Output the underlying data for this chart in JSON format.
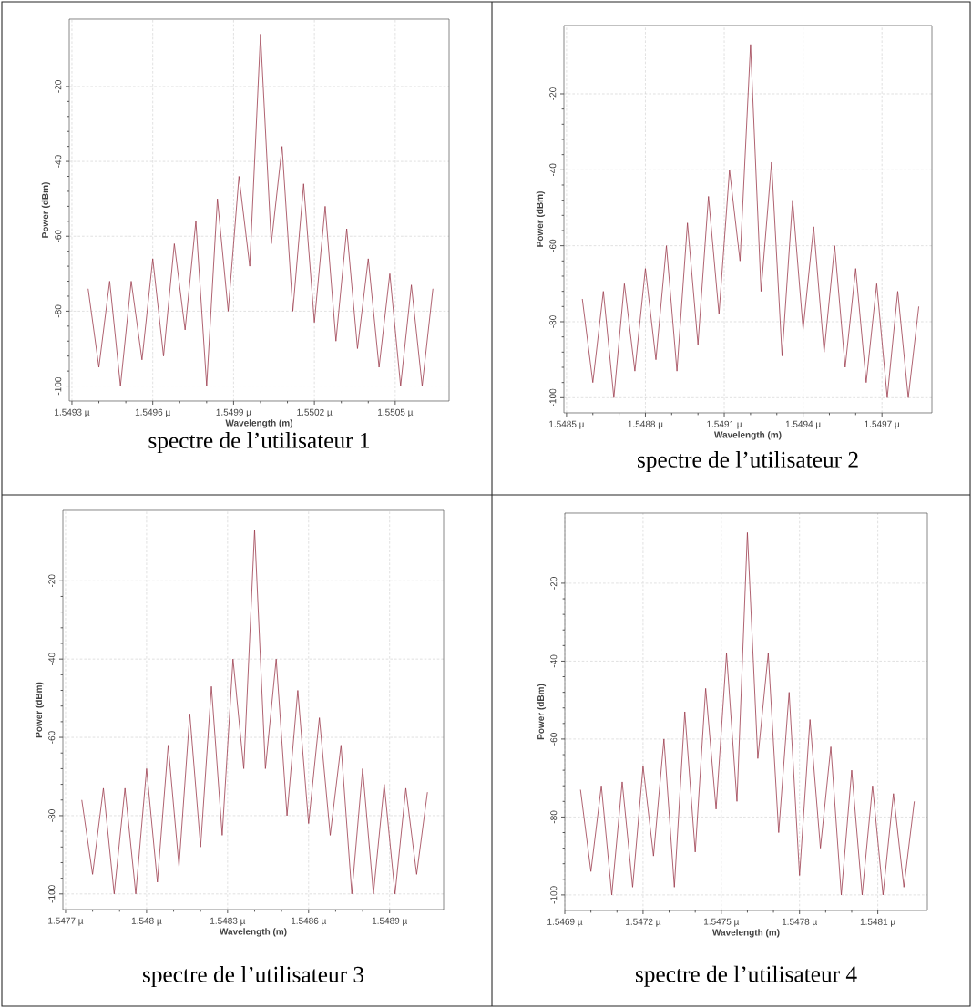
{
  "chart_data": [
    {
      "type": "line",
      "title": "spectre de l’utilisateur 1",
      "xlabel": "Wavelength (m)",
      "ylabel": "Power (dBm)",
      "xlim": [
        1.54929,
        1.5507
      ],
      "ylim": [
        -104,
        -2
      ],
      "xticks": [
        {
          "value": 1.5493,
          "label": "1.5493 µ"
        },
        {
          "value": 1.5496,
          "label": "1.5496 µ"
        },
        {
          "value": 1.5499,
          "label": "1.5499 µ"
        },
        {
          "value": 1.5502,
          "label": "1.5502 µ"
        },
        {
          "value": 1.5505,
          "label": "1.5505 µ"
        }
      ],
      "yticks": [
        -20,
        -40,
        -60,
        -80,
        -100
      ],
      "grid": true,
      "x": [
        1.54936,
        1.5494,
        1.54944,
        1.54948,
        1.54952,
        1.54956,
        1.5496,
        1.54964,
        1.54968,
        1.54972,
        1.54976,
        1.5498,
        1.54984,
        1.54988,
        1.54992,
        1.54996,
        1.55,
        1.55004,
        1.55008,
        1.55012,
        1.55016,
        1.5502,
        1.55024,
        1.55028,
        1.55032,
        1.55036,
        1.5504,
        1.55044,
        1.55048,
        1.55052,
        1.55056,
        1.5506,
        1.55064
      ],
      "series": [
        {
          "color": "#9c3b4c",
          "values": [
            -74,
            -95,
            -72,
            -100,
            -72,
            -93,
            -66,
            -92,
            -62,
            -85,
            -56,
            -100,
            -50,
            -80,
            -44,
            -68,
            -6,
            -62,
            -36,
            -80,
            -46,
            -83,
            -52,
            -88,
            -58,
            -90,
            -66,
            -95,
            -70,
            -100,
            -73,
            -100,
            -74
          ]
        }
      ]
    },
    {
      "type": "line",
      "title": "spectre de l’utilisateur 2",
      "xlabel": "Wavelength (m)",
      "ylabel": "Power (dBm)",
      "xlim": [
        1.54849,
        1.54989
      ],
      "ylim": [
        -104,
        -2
      ],
      "xticks": [
        {
          "value": 1.5485,
          "label": "1.5485 µ"
        },
        {
          "value": 1.5488,
          "label": "1.5488 µ"
        },
        {
          "value": 1.5491,
          "label": "1.5491 µ"
        },
        {
          "value": 1.5494,
          "label": "1.5494 µ"
        },
        {
          "value": 1.5497,
          "label": "1.5497 µ"
        }
      ],
      "yticks": [
        -20,
        -40,
        -60,
        -80,
        -100
      ],
      "grid": true,
      "x": [
        1.54856,
        1.5486,
        1.54864,
        1.54868,
        1.54872,
        1.54876,
        1.5488,
        1.54884,
        1.54888,
        1.54892,
        1.54896,
        1.549,
        1.54904,
        1.54908,
        1.54912,
        1.54916,
        1.5492,
        1.54924,
        1.54928,
        1.54932,
        1.54936,
        1.5494,
        1.54944,
        1.54948,
        1.54952,
        1.54956,
        1.5496,
        1.54964,
        1.54968,
        1.54972,
        1.54976,
        1.5498,
        1.54984
      ],
      "series": [
        {
          "color": "#9c3b4c",
          "values": [
            -74,
            -96,
            -72,
            -100,
            -70,
            -93,
            -66,
            -90,
            -60,
            -93,
            -54,
            -86,
            -47,
            -78,
            -40,
            -64,
            -7,
            -72,
            -38,
            -89,
            -48,
            -82,
            -55,
            -88,
            -60,
            -92,
            -66,
            -96,
            -70,
            -100,
            -72,
            -100,
            -76
          ]
        }
      ]
    },
    {
      "type": "line",
      "title": "spectre de l’utilisateur 3",
      "xlabel": "Wavelength (m)",
      "ylabel": "Power (dBm)",
      "xlim": [
        1.54769,
        1.5491
      ],
      "ylim": [
        -104,
        -2
      ],
      "xticks": [
        {
          "value": 1.5477,
          "label": "1.5477 µ"
        },
        {
          "value": 1.548,
          "label": "1.548 µ"
        },
        {
          "value": 1.5483,
          "label": "1.5483 µ"
        },
        {
          "value": 1.5486,
          "label": "1.5486 µ"
        },
        {
          "value": 1.5489,
          "label": "1.5489 µ"
        }
      ],
      "yticks": [
        -20,
        -40,
        -60,
        -80,
        -100
      ],
      "grid": true,
      "x": [
        1.54776,
        1.5478,
        1.54784,
        1.54788,
        1.54792,
        1.54796,
        1.548,
        1.54804,
        1.54808,
        1.54812,
        1.54816,
        1.5482,
        1.54824,
        1.54828,
        1.54832,
        1.54836,
        1.5484,
        1.54844,
        1.54848,
        1.54852,
        1.54856,
        1.5486,
        1.54864,
        1.54868,
        1.54872,
        1.54876,
        1.5488,
        1.54884,
        1.54888,
        1.54892,
        1.54896,
        1.549,
        1.54904
      ],
      "series": [
        {
          "color": "#9c3b4c",
          "values": [
            -76,
            -95,
            -73,
            -100,
            -73,
            -100,
            -68,
            -97,
            -62,
            -93,
            -54,
            -88,
            -47,
            -85,
            -40,
            -68,
            -7,
            -68,
            -40,
            -80,
            -48,
            -82,
            -55,
            -85,
            -62,
            -100,
            -68,
            -100,
            -72,
            -100,
            -73,
            -95,
            -74
          ]
        }
      ]
    },
    {
      "type": "line",
      "title": "spectre de l’utilisateur 4",
      "xlabel": "Wavelength (m)",
      "ylabel": "Power (dBm)",
      "xlim": [
        1.5469,
        1.54829
      ],
      "ylim": [
        -104,
        -2
      ],
      "xticks": [
        {
          "value": 1.5469,
          "label": "1.5469 µ"
        },
        {
          "value": 1.5472,
          "label": "1.5472 µ"
        },
        {
          "value": 1.5475,
          "label": "1.5475 µ"
        },
        {
          "value": 1.5478,
          "label": "1.5478 µ"
        },
        {
          "value": 1.5481,
          "label": "1.5481 µ"
        }
      ],
      "yticks": [
        -20,
        -40,
        -60,
        -80,
        -100
      ],
      "grid": true,
      "x": [
        1.54696,
        1.547,
        1.54704,
        1.54708,
        1.54712,
        1.54716,
        1.5472,
        1.54724,
        1.54728,
        1.54732,
        1.54736,
        1.5474,
        1.54744,
        1.54748,
        1.54752,
        1.54756,
        1.5476,
        1.54764,
        1.54768,
        1.54772,
        1.54776,
        1.5478,
        1.54784,
        1.54788,
        1.54792,
        1.54796,
        1.548,
        1.54804,
        1.54808,
        1.54812,
        1.54816,
        1.5482,
        1.54824
      ],
      "series": [
        {
          "color": "#9c3b4c",
          "values": [
            -73,
            -94,
            -72,
            -100,
            -71,
            -98,
            -67,
            -90,
            -60,
            -98,
            -53,
            -89,
            -47,
            -78,
            -38,
            -76,
            -7,
            -65,
            -38,
            -84,
            -48,
            -95,
            -55,
            -88,
            -62,
            -100,
            -68,
            -100,
            -72,
            -100,
            -74,
            -98,
            -76
          ]
        }
      ]
    }
  ]
}
